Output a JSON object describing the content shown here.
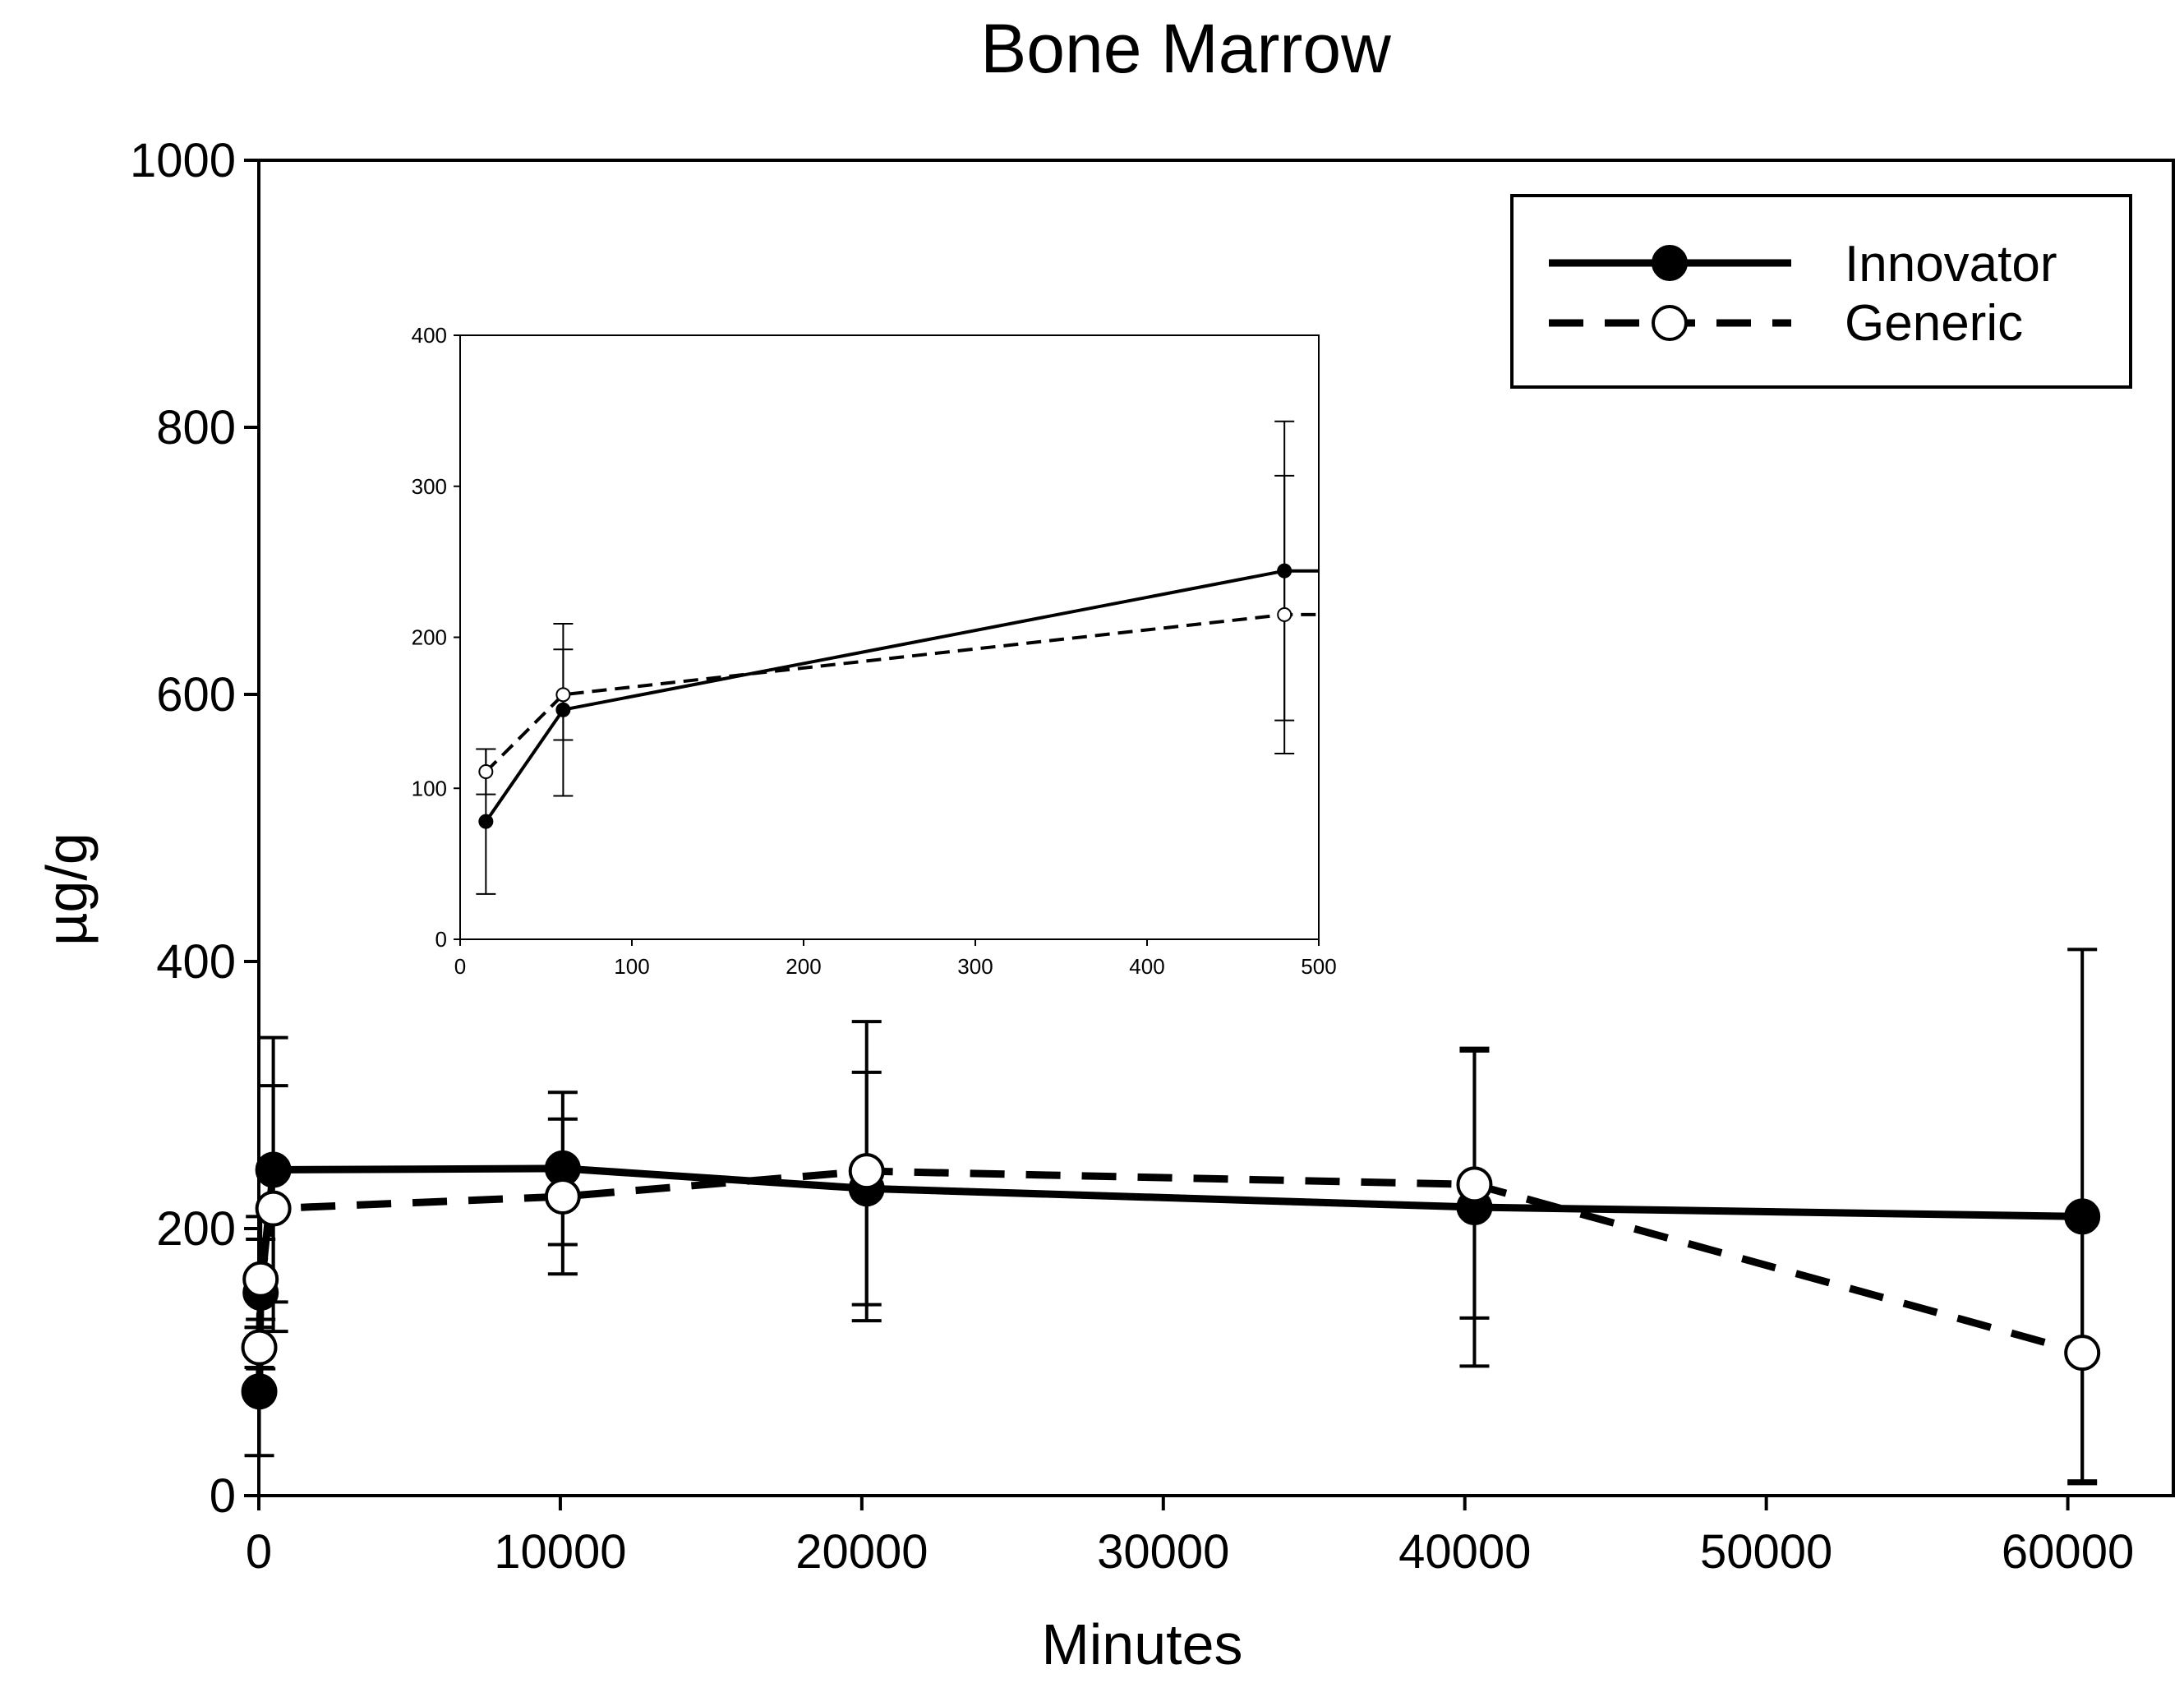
{
  "chart_data": [
    {
      "id": "main",
      "type": "line",
      "title": "Bone Marrow",
      "xlabel": "Minutes",
      "ylabel": "µg/g",
      "xlim": [
        0,
        63500
      ],
      "ylim": [
        0,
        1000
      ],
      "xticks": [
        0,
        10000,
        20000,
        30000,
        40000,
        50000,
        60000
      ],
      "yticks": [
        0,
        200,
        400,
        600,
        800,
        1000
      ],
      "legend": {
        "position": "top-right",
        "entries": [
          "Innovator",
          "Generic"
        ]
      },
      "series": [
        {
          "name": "Innovator",
          "style": "solid",
          "marker": "filled-circle",
          "x": [
            15,
            60,
            480,
            10080,
            20160,
            40320,
            60480
          ],
          "y": [
            78,
            152,
            244,
            245,
            230,
            216,
            209
          ],
          "err": [
            48,
            57,
            99,
            57,
            87,
            119,
            200
          ]
        },
        {
          "name": "Generic",
          "style": "dashed",
          "marker": "open-circle",
          "x": [
            15,
            60,
            480,
            10080,
            20160,
            40320,
            60480
          ],
          "y": [
            111,
            162,
            215,
            224,
            243,
            233,
            107
          ],
          "err": [
            15,
            30,
            92,
            58,
            112,
            100,
            96
          ]
        }
      ]
    },
    {
      "id": "inset",
      "type": "line",
      "title": "",
      "xlabel": "",
      "ylabel": "",
      "xlim": [
        0,
        500
      ],
      "ylim": [
        0,
        400
      ],
      "xticks": [
        0,
        100,
        200,
        300,
        400,
        500
      ],
      "yticks": [
        0,
        100,
        200,
        300,
        400
      ],
      "series": [
        {
          "name": "Innovator",
          "style": "solid",
          "marker": "filled-circle",
          "x": [
            15,
            60,
            480
          ],
          "y": [
            78,
            152,
            244
          ],
          "err": [
            48,
            57,
            99
          ]
        },
        {
          "name": "Generic",
          "style": "dashed",
          "marker": "open-circle",
          "x": [
            15,
            60,
            480
          ],
          "y": [
            111,
            162,
            215
          ],
          "err": [
            15,
            30,
            92
          ]
        }
      ]
    }
  ]
}
